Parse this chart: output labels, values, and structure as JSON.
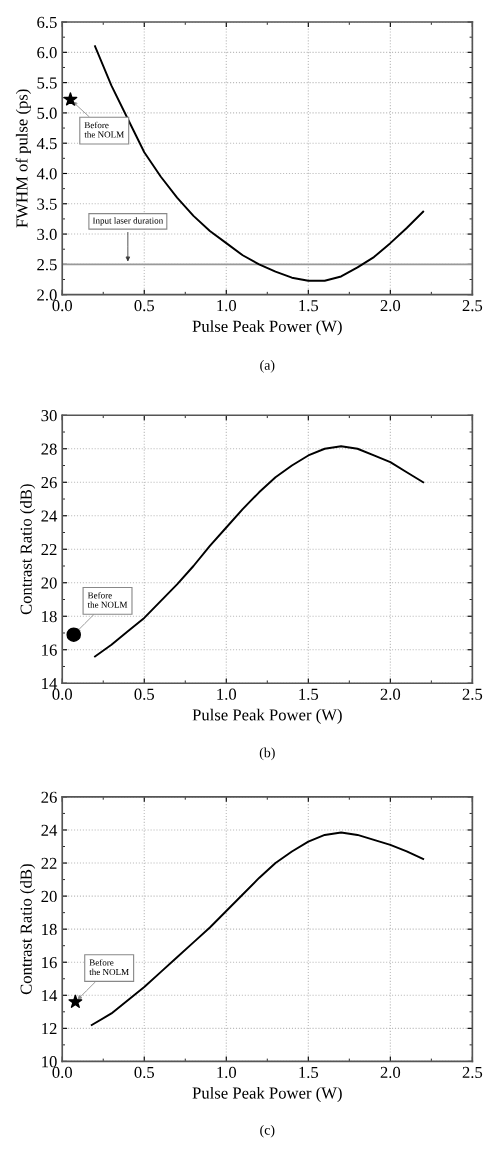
{
  "chart_data": [
    {
      "type": "line",
      "xlabel": "Pulse Peak Power (W)",
      "ylabel": "FWHM of pulse (ps)",
      "x": [
        0.2,
        0.3,
        0.4,
        0.5,
        0.6,
        0.7,
        0.8,
        0.9,
        1.0,
        1.1,
        1.2,
        1.3,
        1.4,
        1.5,
        1.6,
        1.7,
        1.8,
        1.9,
        2.0,
        2.1,
        2.2
      ],
      "series": [
        {
          "color": "#000000",
          "values": [
            6.1,
            5.45,
            4.9,
            4.35,
            3.95,
            3.6,
            3.3,
            3.05,
            2.85,
            2.65,
            2.5,
            2.38,
            2.28,
            2.23,
            2.23,
            2.3,
            2.45,
            2.62,
            2.85,
            3.1,
            3.37
          ]
        },
        {
          "type": "scatter",
          "color": "#000000",
          "marker": "star",
          "x": [
            0.05
          ],
          "values": [
            5.22
          ]
        }
      ],
      "xlim": [
        0.0,
        2.5
      ],
      "xticks": [
        {
          "value": 0.0,
          "label": "0.0"
        },
        0.5,
        {
          "value": 1.0,
          "label": "1.0"
        },
        1.5,
        {
          "value": 2.0,
          "label": "2.0"
        },
        2.5
      ],
      "ylim": [
        2.0,
        6.5
      ],
      "yticks": [
        {
          "value": 2.0,
          "label": "2.0"
        },
        2.5,
        {
          "value": 3.0,
          "label": "3.0"
        },
        3.5,
        {
          "value": 4.0,
          "label": "4.0"
        },
        4.5,
        {
          "value": 5.0,
          "label": "5.0"
        },
        5.5,
        {
          "value": 6.0,
          "label": "6.0"
        },
        6.5
      ],
      "grid": true,
      "ref_lines": [
        {
          "axis": "y",
          "value": 2.5,
          "label": "Input laser duration",
          "color": "#999999"
        }
      ],
      "annotations": [
        {
          "text": "Before\nthe NOLM",
          "x": 0.05,
          "y": 5.22
        },
        "(a)"
      ]
    },
    {
      "type": "line",
      "xlabel": "Pulse Peak Power (W)",
      "ylabel": "Contrast Ratio (dB)",
      "x": [
        0.2,
        0.3,
        0.4,
        0.5,
        0.6,
        0.7,
        0.8,
        0.9,
        1.0,
        1.1,
        1.2,
        1.3,
        1.4,
        1.5,
        1.6,
        1.7,
        1.8,
        1.9,
        2.0,
        2.1,
        2.2
      ],
      "series": [
        {
          "color": "#000000",
          "values": [
            15.6,
            16.3,
            17.1,
            17.9,
            18.9,
            19.9,
            21.0,
            22.2,
            23.3,
            24.4,
            25.4,
            26.3,
            27.0,
            27.6,
            28.0,
            28.15,
            28.0,
            27.6,
            27.2,
            26.6,
            26.0
          ]
        },
        {
          "type": "scatter",
          "color": "#000000",
          "marker": "circle",
          "x": [
            0.07
          ],
          "values": [
            16.9
          ]
        }
      ],
      "xlim": [
        0.0,
        2.5
      ],
      "xticks": [
        {
          "value": 0.0,
          "label": "0.0"
        },
        0.5,
        {
          "value": 1.0,
          "label": "1.0"
        },
        1.5,
        {
          "value": 2.0,
          "label": "2.0"
        },
        2.5
      ],
      "ylim": [
        14,
        30
      ],
      "yticks": [
        14,
        16,
        18,
        20,
        22,
        24,
        26,
        28,
        30
      ],
      "grid": true,
      "annotations": [
        {
          "text": "Before\nthe NOLM",
          "x": 0.07,
          "y": 16.9
        },
        "(b)"
      ]
    },
    {
      "type": "line",
      "xlabel": "Pulse Peak Power (W)",
      "ylabel": "Contrast Ratio (dB)",
      "x": [
        0.18,
        0.3,
        0.4,
        0.5,
        0.6,
        0.7,
        0.8,
        0.9,
        1.0,
        1.1,
        1.2,
        1.3,
        1.4,
        1.5,
        1.6,
        1.7,
        1.8,
        1.9,
        2.0,
        2.1,
        2.2
      ],
      "series": [
        {
          "color": "#000000",
          "values": [
            12.2,
            12.9,
            13.7,
            14.5,
            15.4,
            16.3,
            17.2,
            18.1,
            19.1,
            20.1,
            21.1,
            22.0,
            22.7,
            23.3,
            23.7,
            23.85,
            23.7,
            23.4,
            23.1,
            22.7,
            22.25
          ]
        },
        {
          "type": "scatter",
          "color": "#000000",
          "marker": "star",
          "x": [
            0.08
          ],
          "values": [
            13.6
          ]
        }
      ],
      "xlim": [
        0.0,
        2.5
      ],
      "xticks": [
        {
          "value": 0.0,
          "label": "0.0"
        },
        0.5,
        {
          "value": 1.0,
          "label": "1.0"
        },
        1.5,
        {
          "value": 2.0,
          "label": "2.0"
        },
        2.5
      ],
      "ylim": [
        10,
        26
      ],
      "yticks": [
        10,
        12,
        14,
        16,
        18,
        20,
        22,
        24,
        26
      ],
      "grid": true,
      "annotations": [
        {
          "text": "Before\nthe NOLM",
          "x": 0.08,
          "y": 13.6
        },
        "(c)"
      ]
    }
  ]
}
